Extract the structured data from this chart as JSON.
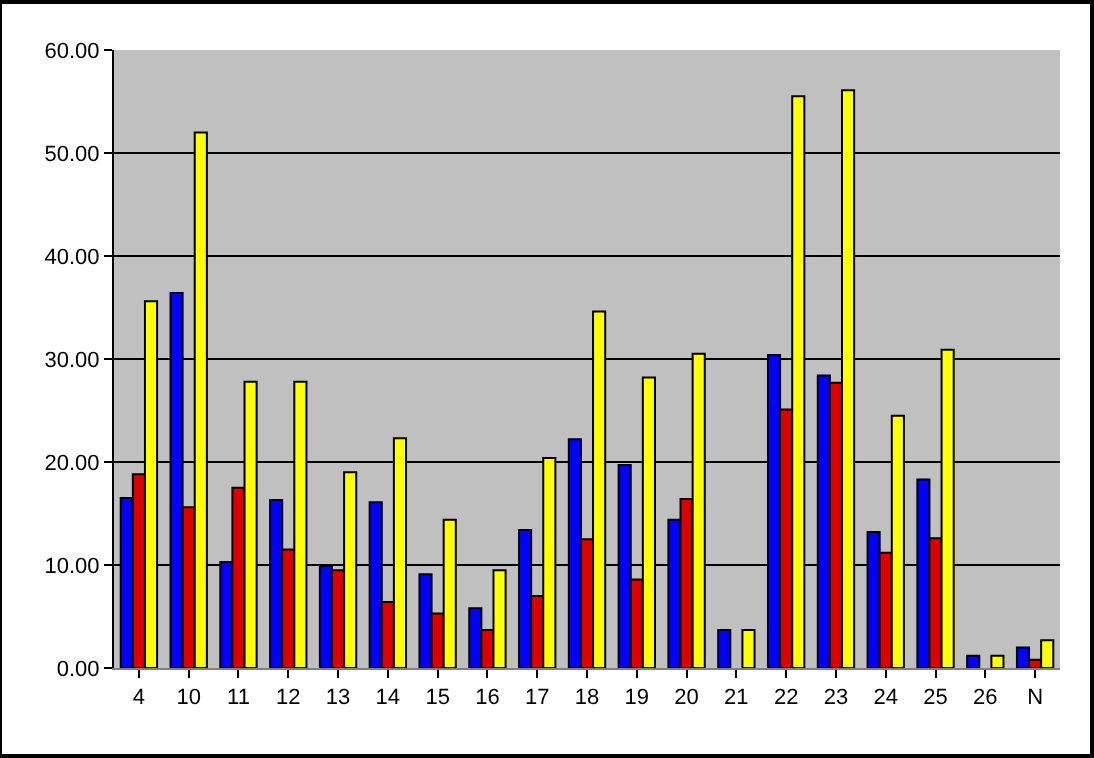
{
  "chart_data": {
    "type": "bar",
    "categories": [
      "4",
      "10",
      "11",
      "12",
      "13",
      "14",
      "15",
      "16",
      "17",
      "18",
      "19",
      "20",
      "21",
      "22",
      "23",
      "24",
      "25",
      "26",
      "N"
    ],
    "series": [
      {
        "color": "#0000ff",
        "values": [
          16.5,
          36.4,
          10.3,
          16.3,
          9.9,
          16.1,
          9.1,
          5.8,
          13.4,
          22.2,
          19.7,
          14.4,
          3.7,
          30.4,
          28.4,
          13.2,
          18.3,
          1.2,
          2.0
        ]
      },
      {
        "color": "#dd0000",
        "values": [
          18.8,
          15.6,
          17.5,
          11.5,
          9.5,
          6.4,
          5.3,
          3.7,
          7.0,
          12.5,
          8.6,
          16.4,
          null,
          25.1,
          27.7,
          11.2,
          12.6,
          null,
          0.8
        ]
      },
      {
        "color": "#ffff00",
        "values": [
          35.6,
          52.0,
          27.8,
          27.8,
          19.0,
          22.3,
          14.4,
          9.5,
          20.4,
          34.6,
          28.2,
          30.5,
          3.7,
          55.5,
          56.1,
          24.5,
          30.9,
          1.2,
          2.7
        ]
      }
    ],
    "ylim": [
      0,
      60
    ],
    "yticks": [
      {
        "value": 0,
        "label": "0.00"
      },
      {
        "value": 10,
        "label": "10.00"
      },
      {
        "value": 20,
        "label": "20.00"
      },
      {
        "value": 30,
        "label": "30.00"
      },
      {
        "value": 40,
        "label": "40.00"
      },
      {
        "value": 50,
        "label": "50.00"
      },
      {
        "value": 60,
        "label": "60.00"
      }
    ],
    "grid": "y"
  }
}
